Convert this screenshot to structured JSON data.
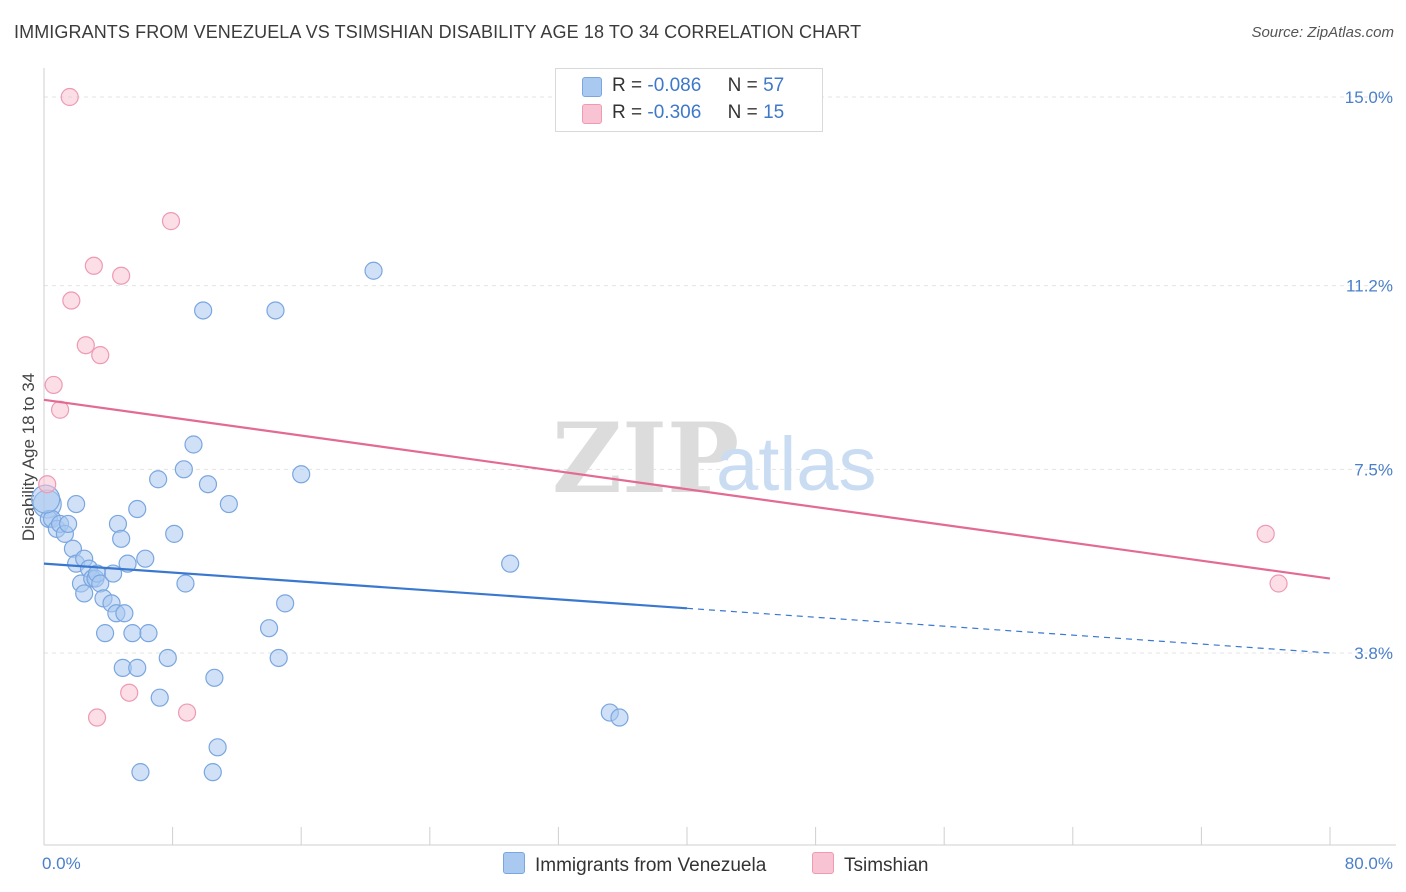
{
  "title": "IMMIGRANTS FROM VENEZUELA VS TSIMSHIAN DISABILITY AGE 18 TO 34 CORRELATION CHART",
  "source": "Source: ZipAtlas.com",
  "watermark": {
    "zip": "ZIP",
    "atlas": "atlas"
  },
  "legend": {
    "rows": [
      {
        "r_label": "R =",
        "r_value": "-0.086",
        "n_label": "N =",
        "n_value": "57",
        "color": "#a9c9f0",
        "border": "#7aa6e0"
      },
      {
        "r_label": "R =",
        "r_value": "-0.306",
        "n_label": "N =",
        "n_value": "15",
        "color": "#f8c3d2",
        "border": "#ee9ab3"
      }
    ]
  },
  "bottom_legend": [
    {
      "label": "Immigrants from Venezuela",
      "color": "#a9c9f0",
      "border": "#7aa6e0"
    },
    {
      "label": "Tsimshian",
      "color": "#f8c3d2",
      "border": "#ee9ab3"
    }
  ],
  "chart_data": {
    "type": "scatter",
    "title": "IMMIGRANTS FROM VENEZUELA VS TSIMSHIAN DISABILITY AGE 18 TO 34 CORRELATION CHART",
    "xlabel": "",
    "ylabel": "Disability Age 18 to 34",
    "xlim": [
      0,
      80
    ],
    "ylim": [
      0,
      15.5
    ],
    "x_tick_labels": [
      {
        "value": 0,
        "label": "0.0%"
      },
      {
        "value": 80,
        "label": "80.0%"
      }
    ],
    "x_minor_ticks": [
      8,
      16,
      24,
      32,
      40,
      48,
      56,
      64,
      72,
      80
    ],
    "y_ticks": [
      {
        "value": 3.8,
        "label": "3.8%"
      },
      {
        "value": 7.5,
        "label": "7.5%"
      },
      {
        "value": 11.2,
        "label": "11.2%"
      },
      {
        "value": 15.0,
        "label": "15.0%"
      }
    ],
    "grid": true,
    "legend_position": "top-center",
    "series": [
      {
        "name": "Immigrants from Venezuela",
        "color": "#a9c9f0",
        "edge": "#7aa6e0",
        "line_color": "#3a78d0",
        "trend": {
          "x0": 0,
          "y0": 5.6,
          "x1": 40,
          "y1": 4.7,
          "x_end": 80,
          "y_end": 3.8
        },
        "points": [
          [
            0.2,
            6.8
          ],
          [
            0.3,
            6.5
          ],
          [
            0.5,
            6.5
          ],
          [
            0.8,
            6.3
          ],
          [
            1.0,
            6.4
          ],
          [
            1.3,
            6.2
          ],
          [
            1.5,
            6.4
          ],
          [
            1.8,
            5.9
          ],
          [
            2.0,
            5.6
          ],
          [
            2.0,
            6.8
          ],
          [
            2.5,
            5.7
          ],
          [
            2.3,
            5.2
          ],
          [
            2.5,
            5.0
          ],
          [
            2.8,
            5.5
          ],
          [
            3.0,
            5.3
          ],
          [
            3.2,
            5.3
          ],
          [
            3.3,
            5.4
          ],
          [
            3.5,
            5.2
          ],
          [
            3.7,
            4.9
          ],
          [
            3.8,
            4.2
          ],
          [
            4.2,
            4.8
          ],
          [
            4.3,
            5.4
          ],
          [
            4.5,
            4.6
          ],
          [
            4.6,
            6.4
          ],
          [
            4.8,
            6.1
          ],
          [
            4.9,
            3.5
          ],
          [
            5.0,
            4.6
          ],
          [
            5.2,
            5.6
          ],
          [
            5.5,
            4.2
          ],
          [
            5.8,
            6.7
          ],
          [
            5.8,
            3.5
          ],
          [
            6.0,
            1.4
          ],
          [
            6.3,
            5.7
          ],
          [
            6.5,
            4.2
          ],
          [
            7.1,
            7.3
          ],
          [
            7.2,
            2.9
          ],
          [
            7.7,
            3.7
          ],
          [
            8.1,
            6.2
          ],
          [
            8.7,
            7.5
          ],
          [
            8.8,
            5.2
          ],
          [
            9.3,
            8.0
          ],
          [
            9.9,
            10.7
          ],
          [
            10.2,
            7.2
          ],
          [
            10.5,
            1.4
          ],
          [
            10.6,
            3.3
          ],
          [
            10.8,
            1.9
          ],
          [
            11.5,
            6.8
          ],
          [
            14.0,
            4.3
          ],
          [
            14.4,
            10.7
          ],
          [
            14.6,
            3.7
          ],
          [
            15.0,
            4.8
          ],
          [
            16.0,
            7.4
          ],
          [
            20.5,
            11.5
          ],
          [
            29.0,
            5.6
          ],
          [
            35.2,
            2.6
          ],
          [
            35.8,
            2.5
          ],
          [
            0.1,
            6.9
          ]
        ]
      },
      {
        "name": "Tsimshian",
        "color": "#f8c3d2",
        "edge": "#ee9ab3",
        "line_color": "#e36a93",
        "trend": {
          "x0": 0,
          "y0": 8.9,
          "x1": 80,
          "y1": 5.3
        },
        "points": [
          [
            0.2,
            7.2
          ],
          [
            0.6,
            9.2
          ],
          [
            1.0,
            8.7
          ],
          [
            1.6,
            15.0
          ],
          [
            1.7,
            10.9
          ],
          [
            2.6,
            10.0
          ],
          [
            3.1,
            11.6
          ],
          [
            3.5,
            9.8
          ],
          [
            3.3,
            2.5
          ],
          [
            4.8,
            11.4
          ],
          [
            5.3,
            3.0
          ],
          [
            7.9,
            12.5
          ],
          [
            8.9,
            2.6
          ],
          [
            76.0,
            6.2
          ],
          [
            76.8,
            5.2
          ]
        ]
      }
    ]
  }
}
